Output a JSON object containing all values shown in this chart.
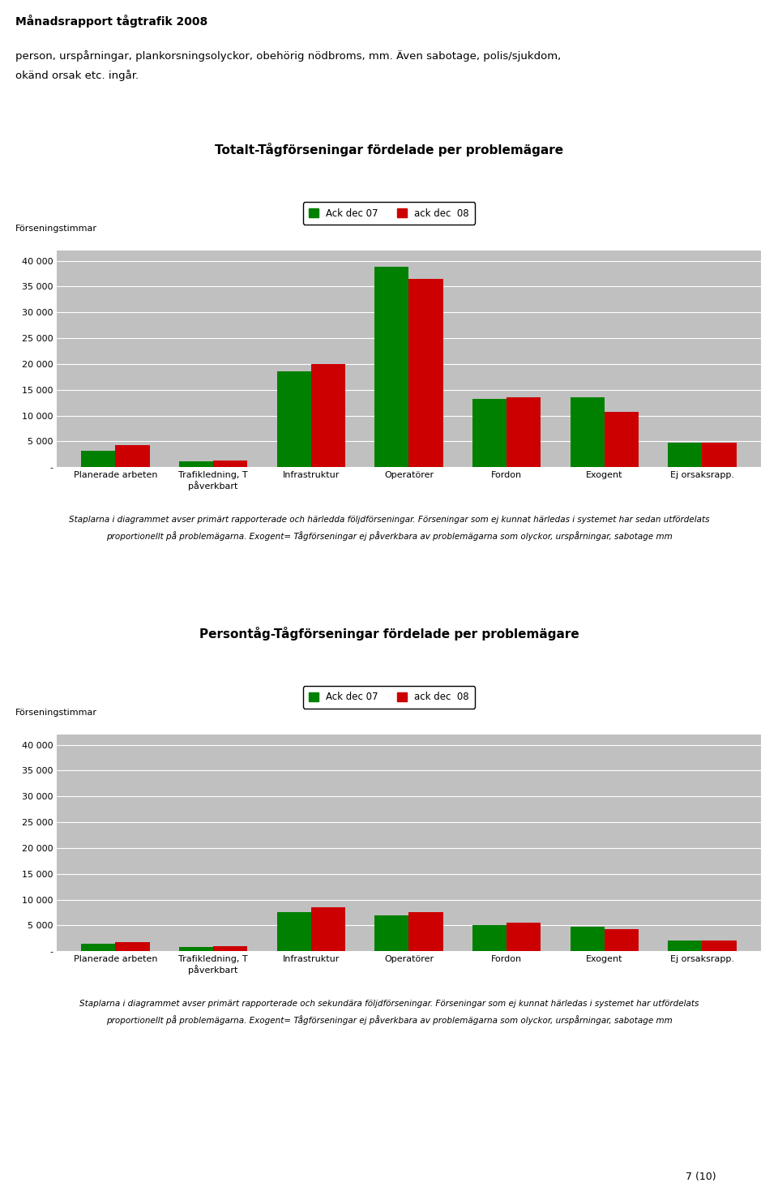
{
  "page_title": "Månadsrapport tågtrafik 2008",
  "intro_text1": "person, urspårningar, plankorsningsolyckor, obehörig nödbroms, mm. Även sabotage, polis/sjukdom,",
  "intro_text2": "okänd orsak etc. ingår.",
  "chart1": {
    "title": "Totalt-Tågförseningar fördelade per problemägare",
    "ylabel": "Förseningstimmar",
    "legend1": "Ack dec 07",
    "legend2": "ack dec  08",
    "categories": [
      "Planerade arbeten",
      "Trafikledning, T\npåverkbart",
      "Infrastruktur",
      "Operatörer",
      "Fordon",
      "Exogent",
      "Ej orsaksrapp."
    ],
    "values07": [
      3200,
      1200,
      18500,
      38800,
      13300,
      13500,
      4700
    ],
    "values08": [
      4200,
      1350,
      20000,
      36500,
      13500,
      10700,
      4700
    ],
    "ylim": [
      0,
      42000
    ],
    "yticks": [
      0,
      5000,
      10000,
      15000,
      20000,
      25000,
      30000,
      35000,
      40000
    ],
    "ytick_labels": [
      "-",
      "5 000",
      "10 000",
      "15 000",
      "20 000",
      "25 000",
      "30 000",
      "35 000",
      "40 000"
    ],
    "footnote1": "Staplarna i diagrammet avser primärt rapporterade och härledda följdförseningar. Förseningar som ej kunnat härledas i systemet har sedan utfördelats",
    "footnote2": "proportionellt på problemägarna. Exogent= Tågförseningar ej påverkbara av problemägarna som olyckor, urspårningar, sabotage mm"
  },
  "chart2": {
    "title": "Persontåg-Tågförseningar fördelade per problemägare",
    "ylabel": "Förseningstimmar",
    "legend1": "Ack dec 07",
    "legend2": "ack dec  08",
    "categories": [
      "Planerade arbeten",
      "Trafikledning, T\npåverkbart",
      "Infrastruktur",
      "Operatörer",
      "Fordon",
      "Exogent",
      "Ej orsaksrapp."
    ],
    "values07": [
      1400,
      800,
      7500,
      6900,
      5000,
      4700,
      2000
    ],
    "values08": [
      1700,
      950,
      8500,
      7500,
      5500,
      4200,
      2100
    ],
    "ylim": [
      0,
      42000
    ],
    "yticks": [
      0,
      5000,
      10000,
      15000,
      20000,
      25000,
      30000,
      35000,
      40000
    ],
    "ytick_labels": [
      "-",
      "5 000",
      "10 000",
      "15 000",
      "20 000",
      "25 000",
      "30 000",
      "35 000",
      "40 000"
    ],
    "footnote1": "Staplarna i diagrammet avser primärt rapporterade och sekundära följdförseningar. Förseningar som ej kunnat härledas i systemet har utfördelats",
    "footnote2": "proportionellt på problemägarna. Exogent= Tågförseningar ej påverkbara av problemägarna som olyckor, urspårningar, sabotage mm"
  },
  "color07": "#008000",
  "color08": "#cc0000",
  "bg_color": "#c0c0c0",
  "bar_width": 0.35,
  "page_number": "7 (10)"
}
